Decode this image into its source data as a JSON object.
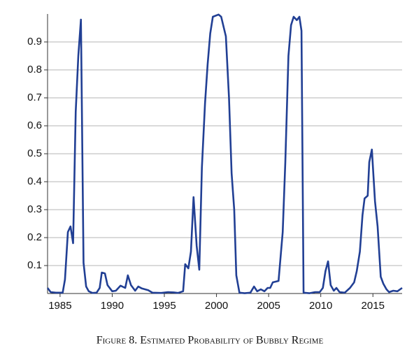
{
  "chart_data": {
    "type": "line",
    "caption": "Figure 8. Estimated Probability of Bubbly Regime",
    "x": [
      1983.8,
      1984.1,
      1984.6,
      1985.25,
      1985.47,
      1985.75,
      1986.0,
      1986.25,
      1986.5,
      1986.75,
      1987.0,
      1987.25,
      1987.5,
      1987.75,
      1988.1,
      1988.5,
      1988.8,
      1989.0,
      1989.3,
      1989.55,
      1990.0,
      1990.35,
      1990.8,
      1991.25,
      1991.5,
      1991.8,
      1992.2,
      1992.5,
      1992.85,
      1993.45,
      1993.85,
      1994.7,
      1995.35,
      1995.9,
      1996.3,
      1996.8,
      1997.0,
      1997.3,
      1997.55,
      1997.8,
      1998.1,
      1998.35,
      1998.6,
      1998.9,
      1999.15,
      1999.4,
      1999.65,
      2000.2,
      2000.45,
      2000.9,
      2001.2,
      2001.45,
      2001.7,
      2001.9,
      2002.2,
      2002.7,
      2003.25,
      2003.6,
      2003.9,
      2004.25,
      2004.6,
      2004.9,
      2005.15,
      2005.4,
      2005.95,
      2006.35,
      2006.6,
      2006.9,
      2007.15,
      2007.4,
      2007.7,
      2007.95,
      2008.15,
      2008.35,
      2008.9,
      2009.45,
      2009.9,
      2010.2,
      2010.45,
      2010.7,
      2010.95,
      2011.25,
      2011.5,
      2011.8,
      2012.3,
      2012.8,
      2013.2,
      2013.45,
      2013.75,
      2014.0,
      2014.2,
      2014.5,
      2014.65,
      2014.9,
      2015.2,
      2015.45,
      2015.75,
      2016.0,
      2016.3,
      2016.55,
      2016.95,
      2017.35,
      2017.8
    ],
    "series": [
      {
        "color": "#213f94",
        "values": [
          0.02,
          0.005,
          0.003,
          0.003,
          0.05,
          0.22,
          0.24,
          0.18,
          0.65,
          0.85,
          0.98,
          0.11,
          0.025,
          0.008,
          0.002,
          0.003,
          0.02,
          0.075,
          0.072,
          0.03,
          0.008,
          0.01,
          0.028,
          0.02,
          0.065,
          0.03,
          0.01,
          0.025,
          0.018,
          0.012,
          0.003,
          0.002,
          0.005,
          0.004,
          0.002,
          0.008,
          0.105,
          0.09,
          0.15,
          0.345,
          0.17,
          0.085,
          0.45,
          0.68,
          0.82,
          0.93,
          0.99,
          0.998,
          0.99,
          0.92,
          0.7,
          0.43,
          0.3,
          0.065,
          0.003,
          0.001,
          0.003,
          0.025,
          0.008,
          0.015,
          0.008,
          0.02,
          0.02,
          0.04,
          0.045,
          0.22,
          0.47,
          0.85,
          0.96,
          0.99,
          0.978,
          0.99,
          0.94,
          0.003,
          0.001,
          0.005,
          0.005,
          0.02,
          0.08,
          0.115,
          0.03,
          0.01,
          0.02,
          0.005,
          0.003,
          0.02,
          0.04,
          0.08,
          0.15,
          0.28,
          0.34,
          0.35,
          0.47,
          0.515,
          0.33,
          0.24,
          0.06,
          0.035,
          0.015,
          0.005,
          0.01,
          0.008,
          0.02
        ]
      }
    ],
    "xlim": [
      1983.8,
      2017.8
    ],
    "xticks": [
      1985,
      1990,
      1995,
      2000,
      2005,
      2010,
      2015
    ],
    "ylim": [
      0,
      1
    ],
    "yticks": [
      0.1,
      0.2,
      0.3,
      0.4,
      0.5,
      0.6,
      0.7,
      0.8,
      0.9
    ],
    "grid": true
  }
}
